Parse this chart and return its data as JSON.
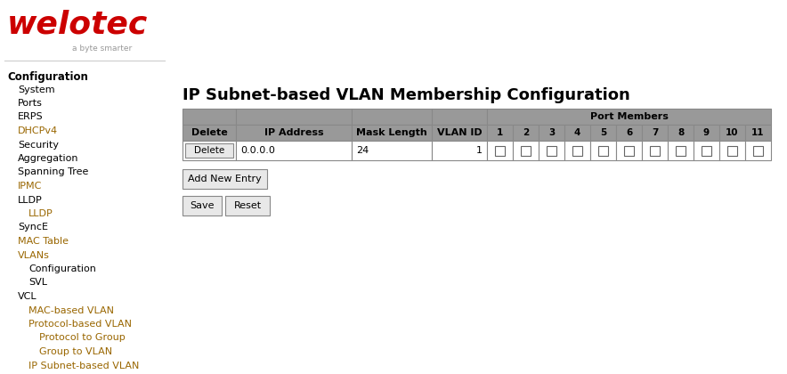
{
  "logo_text": "welotec",
  "logo_tagline": "a byte smarter",
  "logo_color": "#cc0000",
  "tagline_color": "#999999",
  "nav_bold": "Configuration",
  "nav_items": [
    {
      "text": "System",
      "indent": 1,
      "color": "#000000"
    },
    {
      "text": "Ports",
      "indent": 1,
      "color": "#000000"
    },
    {
      "text": "ERPS",
      "indent": 1,
      "color": "#000000"
    },
    {
      "text": "DHCPv4",
      "indent": 1,
      "color": "#996600"
    },
    {
      "text": "Security",
      "indent": 1,
      "color": "#000000"
    },
    {
      "text": "Aggregation",
      "indent": 1,
      "color": "#000000"
    },
    {
      "text": "Spanning Tree",
      "indent": 1,
      "color": "#000000"
    },
    {
      "text": "IPMC",
      "indent": 1,
      "color": "#996600"
    },
    {
      "text": "LLDP",
      "indent": 1,
      "color": "#000000"
    },
    {
      "text": "LLDP",
      "indent": 2,
      "color": "#996600"
    },
    {
      "text": "SyncE",
      "indent": 1,
      "color": "#000000"
    },
    {
      "text": "MAC Table",
      "indent": 1,
      "color": "#996600"
    },
    {
      "text": "VLANs",
      "indent": 1,
      "color": "#996600"
    },
    {
      "text": "Configuration",
      "indent": 2,
      "color": "#000000"
    },
    {
      "text": "SVL",
      "indent": 2,
      "color": "#000000"
    },
    {
      "text": "VCL",
      "indent": 1,
      "color": "#000000"
    },
    {
      "text": "MAC-based VLAN",
      "indent": 2,
      "color": "#996600"
    },
    {
      "text": "Protocol-based VLAN",
      "indent": 2,
      "color": "#996600"
    },
    {
      "text": "Protocol to Group",
      "indent": 3,
      "color": "#996600"
    },
    {
      "text": "Group to VLAN",
      "indent": 3,
      "color": "#996600"
    },
    {
      "text": "IP Subnet-based VLAN",
      "indent": 2,
      "color": "#996600"
    }
  ],
  "main_title": "IP Subnet-based VLAN Membership Configuration",
  "port_members_label": "Port Members",
  "col_headers": [
    "Delete",
    "IP Address",
    "Mask Length",
    "VLAN ID"
  ],
  "port_labels": [
    "1",
    "2",
    "3",
    "4",
    "5",
    "6",
    "7",
    "8",
    "9",
    "10",
    "11"
  ],
  "data_row": [
    "Delete",
    "0.0.0.0",
    "24",
    "1"
  ],
  "num_ports": 11,
  "header_bg": "#999999",
  "border_color": "#888888",
  "row_bg": "#ffffff",
  "btn_bg": "#e8e8e8",
  "btn_add": "Add New Entry",
  "btn_save": "Save",
  "btn_reset": "Reset",
  "bg_color": "#ffffff"
}
